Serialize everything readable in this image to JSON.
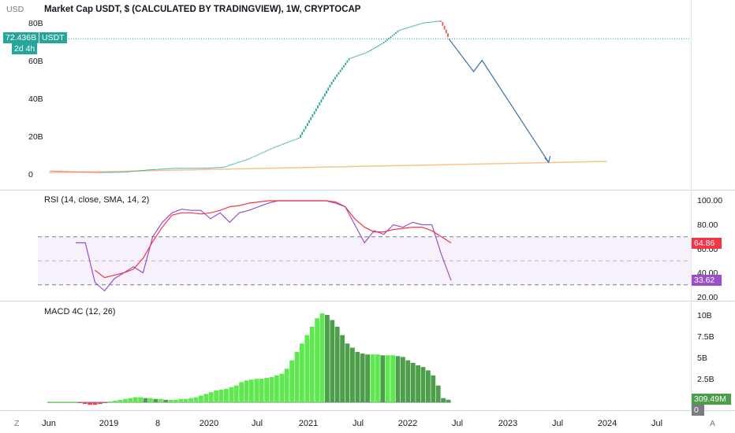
{
  "title": "Market Cap USDT, $ (CALCULATED BY TRADINGVIEW), 1W, CRYPTOCAP",
  "price_axis": {
    "currency": "USD",
    "ticks": [
      "80B",
      "60B",
      "40B",
      "20B",
      "0"
    ]
  },
  "price_badge": {
    "value": "72.436B",
    "countdown": "2d 4h",
    "symbol": "USDT",
    "color": "#26a69a"
  },
  "rsi": {
    "title": "RSI (14, close, SMA, 14, 2)",
    "ticks": [
      "100.00",
      "80.00",
      "60.00",
      "40.00",
      "20.00"
    ],
    "badge_ma": "64.86",
    "badge_rsi": "33.62",
    "ma_color": "#f23645",
    "rsi_color": "#9c4fcb"
  },
  "macd": {
    "title": "MACD 4C (12, 26)",
    "ticks": [
      "10B",
      "7.5B",
      "5B",
      "2.5B"
    ],
    "badge_value": "309.49M",
    "badge_zero": "0",
    "colors": {
      "up_bright": "#5ee94f",
      "up_dark": "#4c9e4a",
      "down": "#e04b5a"
    }
  },
  "x_axis": {
    "labels": [
      "Jun",
      "2019",
      "8",
      "2020",
      "Jul",
      "2021",
      "Jul",
      "2022",
      "Jul",
      "2023",
      "Jul",
      "2024",
      "Jul"
    ]
  },
  "corner_left": "Z",
  "corner_right": "A",
  "chart_data": [
    {
      "type": "candlestick",
      "title": "Market Cap USDT, $ (CALCULATED BY TRADINGVIEW), 1W, CRYPTOCAP",
      "y_unit": "USD (billions)",
      "ylim": [
        0,
        85
      ],
      "series": [
        {
          "x": "2018-06",
          "y": 2.6
        },
        {
          "x": "2018-10",
          "y": 2.0
        },
        {
          "x": "2018-12",
          "y": 1.8
        },
        {
          "x": "2019-03",
          "y": 2.0
        },
        {
          "x": "2019-06",
          "y": 3.2
        },
        {
          "x": "2019-09",
          "y": 4.0
        },
        {
          "x": "2020-01",
          "y": 4.1
        },
        {
          "x": "2020-03",
          "y": 4.6
        },
        {
          "x": "2020-06",
          "y": 9.0
        },
        {
          "x": "2020-09",
          "y": 15.0
        },
        {
          "x": "2020-12",
          "y": 20.0
        },
        {
          "x": "2021-02",
          "y": 35.0
        },
        {
          "x": "2021-04",
          "y": 50.0
        },
        {
          "x": "2021-06",
          "y": 62.0
        },
        {
          "x": "2021-08",
          "y": 65.0
        },
        {
          "x": "2021-10",
          "y": 70.0
        },
        {
          "x": "2021-12",
          "y": 77.0
        },
        {
          "x": "2022-03",
          "y": 81.0
        },
        {
          "x": "2022-05",
          "y": 82.0
        },
        {
          "x": "2022-06",
          "y": 72.4
        }
      ],
      "projection": [
        {
          "x": "2022-06",
          "y": 72.4
        },
        {
          "x": "2022-09",
          "y": 55.0
        },
        {
          "x": "2022-10",
          "y": 61.0
        },
        {
          "x": "2023-06",
          "y": 7.0
        }
      ],
      "trendline": [
        {
          "x": "2018-06",
          "y": 1.5
        },
        {
          "x": "2024-01",
          "y": 7.5
        }
      ]
    },
    {
      "type": "line",
      "title": "RSI (14, close, SMA, 14, 2)",
      "ylim": [
        20,
        100
      ],
      "bands": [
        30,
        50,
        70
      ],
      "series": [
        {
          "name": "RSI",
          "values": [
            [
              0,
              65
            ],
            [
              1,
              65
            ],
            [
              2,
              32
            ],
            [
              3,
              25
            ],
            [
              4,
              35
            ],
            [
              5,
              40
            ],
            [
              6,
              45
            ],
            [
              7,
              40
            ],
            [
              8,
              70
            ],
            [
              9,
              82
            ],
            [
              10,
              90
            ],
            [
              11,
              93
            ],
            [
              12,
              92
            ],
            [
              13,
              92
            ],
            [
              14,
              85
            ],
            [
              15,
              90
            ],
            [
              16,
              82
            ],
            [
              17,
              90
            ],
            [
              18,
              92
            ],
            [
              19,
              95
            ],
            [
              20,
              98
            ],
            [
              21,
              100
            ],
            [
              22,
              100
            ],
            [
              23,
              100
            ],
            [
              24,
              100
            ],
            [
              25,
              100
            ],
            [
              26,
              100
            ],
            [
              27,
              98
            ],
            [
              28,
              95
            ],
            [
              29,
              80
            ],
            [
              30,
              65
            ],
            [
              31,
              75
            ],
            [
              32,
              72
            ],
            [
              33,
              80
            ],
            [
              34,
              78
            ],
            [
              35,
              82
            ],
            [
              36,
              80
            ],
            [
              37,
              80
            ],
            [
              38,
              55
            ],
            [
              39,
              33.62
            ]
          ]
        },
        {
          "name": "MA",
          "values": [
            [
              2,
              42
            ],
            [
              3,
              36
            ],
            [
              4,
              38
            ],
            [
              5,
              40
            ],
            [
              6,
              43
            ],
            [
              7,
              52
            ],
            [
              8,
              66
            ],
            [
              9,
              78
            ],
            [
              10,
              88
            ],
            [
              11,
              90
            ],
            [
              12,
              90
            ],
            [
              13,
              89
            ],
            [
              14,
              90
            ],
            [
              15,
              92
            ],
            [
              16,
              95
            ],
            [
              17,
              96
            ],
            [
              18,
              98
            ],
            [
              19,
              99
            ],
            [
              20,
              100
            ],
            [
              21,
              100
            ],
            [
              22,
              100
            ],
            [
              23,
              100
            ],
            [
              24,
              100
            ],
            [
              25,
              100
            ],
            [
              26,
              100
            ],
            [
              27,
              99
            ],
            [
              28,
              95
            ],
            [
              29,
              85
            ],
            [
              30,
              78
            ],
            [
              31,
              74
            ],
            [
              32,
              74
            ],
            [
              33,
              76
            ],
            [
              34,
              77
            ],
            [
              35,
              78
            ],
            [
              36,
              78
            ],
            [
              37,
              75
            ],
            [
              38,
              70
            ],
            [
              39,
              64.86
            ]
          ]
        }
      ]
    },
    {
      "type": "bar",
      "title": "MACD 4C (12, 26)",
      "y_unit": "billions",
      "ylim": [
        -0.5,
        10.5
      ],
      "values": [
        0,
        0,
        0,
        0,
        0,
        0,
        -0.1,
        -0.2,
        -0.3,
        -0.3,
        -0.2,
        -0.1,
        0.1,
        0.2,
        0.3,
        0.4,
        0.5,
        0.6,
        0.6,
        0.5,
        0.5,
        0.4,
        0.4,
        0.3,
        0.3,
        0.3,
        0.4,
        0.4,
        0.5,
        0.6,
        0.8,
        1.0,
        1.2,
        1.4,
        1.5,
        1.6,
        1.8,
        2.0,
        2.4,
        2.6,
        2.7,
        2.8,
        2.8,
        2.9,
        3.0,
        3.2,
        3.4,
        4.0,
        5.0,
        6.0,
        7.0,
        8.0,
        9.0,
        10.0,
        10.6,
        10.4,
        9.8,
        9.0,
        8.0,
        7.0,
        6.5,
        6.0,
        5.8,
        5.7,
        5.7,
        5.7,
        5.6,
        5.6,
        5.6,
        5.5,
        5.4,
        5.0,
        4.7,
        4.4,
        4.2,
        3.8,
        3.2,
        2.0,
        0.5,
        0.309
      ]
    }
  ]
}
